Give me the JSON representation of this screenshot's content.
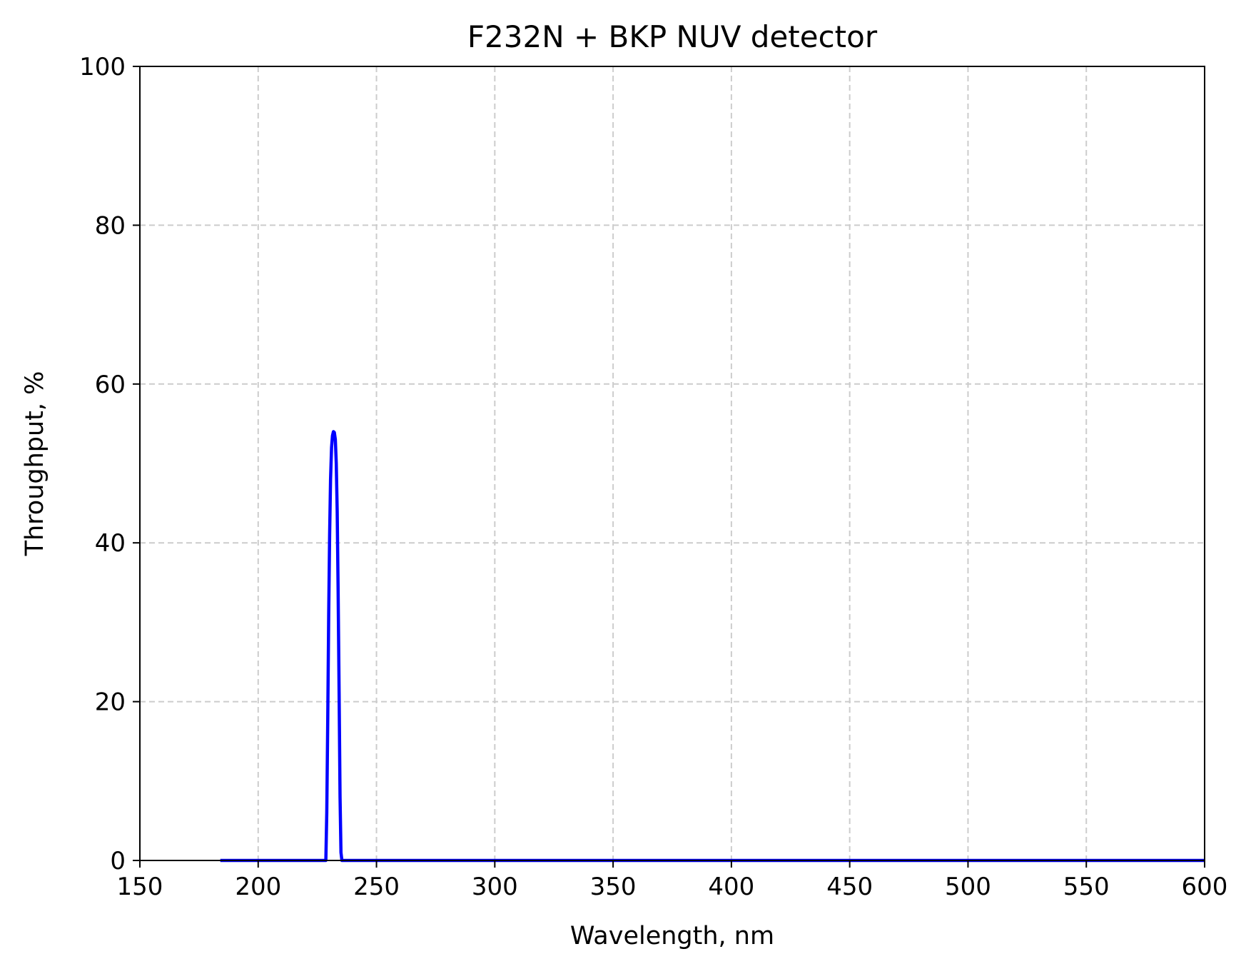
{
  "chart_data": {
    "type": "line",
    "title": "F232N + BKP NUV detector",
    "xlabel": "Wavelength, nm",
    "ylabel": "Throughput, %",
    "xlim": [
      150,
      600
    ],
    "ylim": [
      0,
      100
    ],
    "xticks": [
      150,
      200,
      250,
      300,
      350,
      400,
      450,
      500,
      550,
      600
    ],
    "yticks": [
      0,
      20,
      40,
      60,
      80,
      100
    ],
    "grid": true,
    "grid_style": "dashed",
    "grid_color": "#cccccc",
    "line_color": "#0000ff",
    "series": [
      {
        "x": [
          184,
          228.6,
          229,
          229.4,
          229.8,
          230.2,
          230.6,
          231,
          231.4,
          231.8,
          232.2,
          232.6,
          233,
          233.4,
          233.8,
          234.2,
          234.6,
          235,
          235.4,
          600
        ],
        "y": [
          0,
          0,
          6,
          18,
          31,
          41,
          48,
          52,
          53.5,
          54,
          53.9,
          53,
          50,
          44,
          34,
          21,
          8,
          1,
          0,
          0
        ]
      }
    ]
  }
}
